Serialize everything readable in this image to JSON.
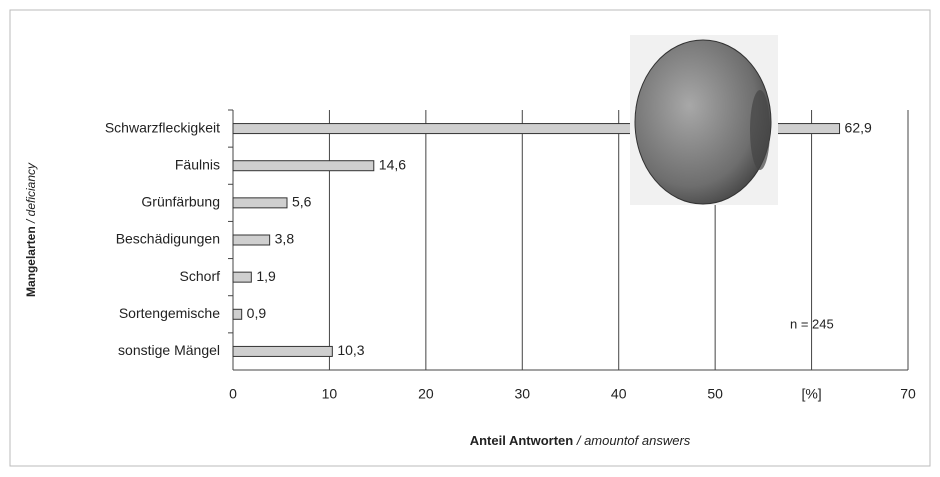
{
  "chart_data": {
    "type": "bar",
    "orientation": "horizontal",
    "categories": [
      "Schwarzfleckigkeit",
      "Fäulnis",
      "Grünfärbung",
      "Beschädigungen",
      "Schorf",
      "Sortengemische",
      "sonstige Mängel"
    ],
    "values": [
      62.9,
      14.6,
      5.6,
      3.8,
      1.9,
      0.9,
      10.3
    ],
    "value_labels": [
      "62,9",
      "14,6",
      "5,6",
      "3,8",
      "1,9",
      "0,9",
      "10,3"
    ],
    "color": "#cfcfcf",
    "xlim": [
      0,
      70
    ],
    "xticks": [
      0,
      10,
      20,
      30,
      40,
      50,
      {
        "value": 60,
        "label": "[%]"
      },
      70
    ],
    "grid": true,
    "x_label": {
      "main": "Anteil Antworten",
      "sub": "/ amountof answers"
    },
    "y_label": {
      "main": "Mangelarten",
      "sub": "/ deficiancy"
    },
    "annotation": "n = 245"
  }
}
